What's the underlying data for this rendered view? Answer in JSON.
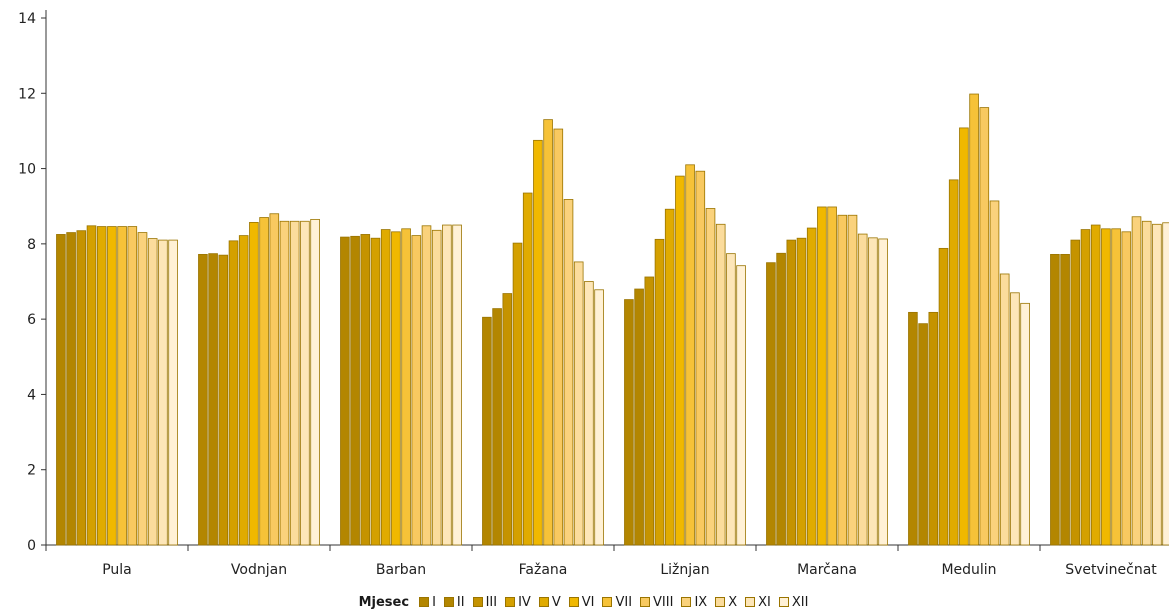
{
  "chart_data": {
    "type": "bar",
    "title": "",
    "xlabel": "",
    "ylabel": "",
    "ylim": [
      0,
      14
    ],
    "yticks": [
      0,
      2,
      4,
      6,
      8,
      10,
      12,
      14
    ],
    "grid": false,
    "legend_position": "bottom",
    "legend_title": "Mjesec",
    "categories": [
      "Pula",
      "Vodnjan",
      "Barban",
      "Fažana",
      "Ližnjan",
      "Marčana",
      "Medulin",
      "Svetvinečnat"
    ],
    "series": [
      {
        "name": "I",
        "color": "#b38600",
        "values": [
          8.25,
          7.72,
          8.18,
          6.05,
          6.52,
          7.5,
          6.18,
          7.72
        ]
      },
      {
        "name": "II",
        "color": "#b38600",
        "values": [
          8.3,
          7.74,
          8.2,
          6.28,
          6.8,
          7.75,
          5.88,
          7.72
        ]
      },
      {
        "name": "III",
        "color": "#c59300",
        "values": [
          8.35,
          7.7,
          8.25,
          6.68,
          7.12,
          8.1,
          6.18,
          8.1
        ]
      },
      {
        "name": "IV",
        "color": "#d4a000",
        "values": [
          8.48,
          8.08,
          8.15,
          8.02,
          8.12,
          8.15,
          7.88,
          8.38
        ]
      },
      {
        "name": "V",
        "color": "#e0ab00",
        "values": [
          8.46,
          8.22,
          8.38,
          9.35,
          8.92,
          8.42,
          9.7,
          8.5
        ]
      },
      {
        "name": "VI",
        "color": "#f0b800",
        "values": [
          8.46,
          8.57,
          8.32,
          10.75,
          9.8,
          8.98,
          11.08,
          8.4
        ]
      },
      {
        "name": "VII",
        "color": "#f6c238",
        "values": [
          8.46,
          8.7,
          8.4,
          11.3,
          10.1,
          8.98,
          11.98,
          8.4
        ]
      },
      {
        "name": "VIII",
        "color": "#f8c960",
        "values": [
          8.46,
          8.8,
          8.22,
          11.05,
          9.93,
          8.76,
          11.62,
          8.32
        ]
      },
      {
        "name": "IX",
        "color": "#fad27c",
        "values": [
          8.3,
          8.6,
          8.48,
          9.18,
          8.94,
          8.76,
          9.14,
          8.72
        ]
      },
      {
        "name": "X",
        "color": "#fbdc9c",
        "values": [
          8.14,
          8.6,
          8.36,
          7.52,
          8.52,
          8.26,
          7.2,
          8.6
        ]
      },
      {
        "name": "XI",
        "color": "#fde6b8",
        "values": [
          8.1,
          8.6,
          8.5,
          7.0,
          7.74,
          8.16,
          6.7,
          8.52
        ]
      },
      {
        "name": "XII",
        "color": "#fff1d6",
        "values": [
          8.1,
          8.65,
          8.5,
          6.78,
          7.42,
          8.13,
          6.42,
          8.56
        ]
      }
    ]
  },
  "colors": {
    "bar_outline": "#9a7400",
    "axis": "#333333"
  }
}
